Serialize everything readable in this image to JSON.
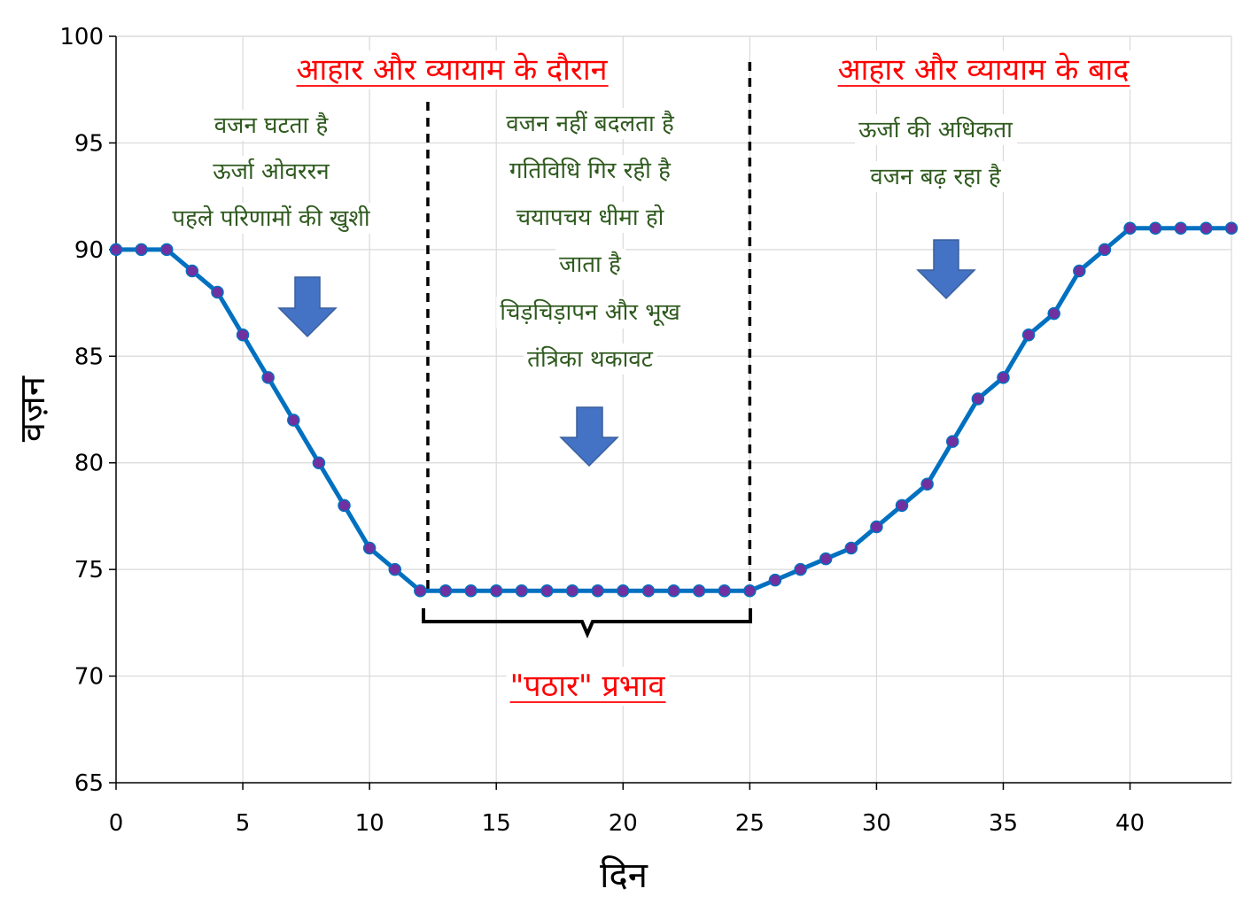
{
  "chart_data": {
    "type": "line",
    "xlabel": "दिन",
    "ylabel": "वज़न",
    "xlim": [
      0,
      44
    ],
    "ylim": [
      65,
      100
    ],
    "x_ticks": [
      "0",
      "5",
      "10",
      "15",
      "20",
      "25",
      "30",
      "35",
      "40"
    ],
    "y_ticks": [
      "65",
      "70",
      "75",
      "80",
      "85",
      "90",
      "95",
      "100"
    ],
    "grid": true,
    "series": [
      {
        "x": [
          0,
          1,
          2,
          3,
          4,
          5,
          6,
          7,
          8,
          9,
          10,
          11,
          12,
          13,
          14,
          15,
          16,
          17,
          18,
          19,
          20,
          21,
          22,
          23,
          24,
          25,
          26,
          27,
          28,
          29,
          30,
          31,
          32,
          33,
          34,
          35,
          36,
          37,
          38,
          39,
          40,
          41,
          42,
          43,
          44
        ],
        "values": [
          90,
          90,
          90,
          89,
          88,
          86,
          84,
          82,
          80,
          78,
          76,
          75,
          74,
          74,
          74,
          74,
          74,
          74,
          74,
          74,
          74,
          74,
          74,
          74,
          74,
          74,
          74.5,
          75,
          75.5,
          76,
          77,
          78,
          79,
          81,
          83,
          84,
          86,
          87,
          89,
          90,
          91,
          91,
          91,
          91,
          91
        ]
      }
    ],
    "line_color": "#0070c0",
    "marker_color": "#7030a0",
    "dividers_x": [
      12.3,
      25
    ],
    "annotations": {
      "heading_during": "आहार और व्यायाम के दौरान",
      "heading_after": "आहार और व्यायाम के बाद",
      "notes_left": [
        "वजन घटता है",
        "ऊर्जा ओवररन",
        "पहले परिणामों की खुशी"
      ],
      "notes_middle": [
        "वजन नहीं बदलता है",
        "गतिविधि गिर रही है",
        "चयापचय धीमा हो",
        "जाता है",
        "चिड़चिड़ापन और भूख",
        "तंत्रिका थकावट"
      ],
      "notes_right": [
        "ऊर्जा की अधिकता",
        "वजन बढ़ रहा है"
      ],
      "plateau_label": "\"पठार\" प्रभाव"
    },
    "heading_color": "#ff0000",
    "note_color": "#2f5a1e",
    "arrow_color": "#4472c4"
  }
}
